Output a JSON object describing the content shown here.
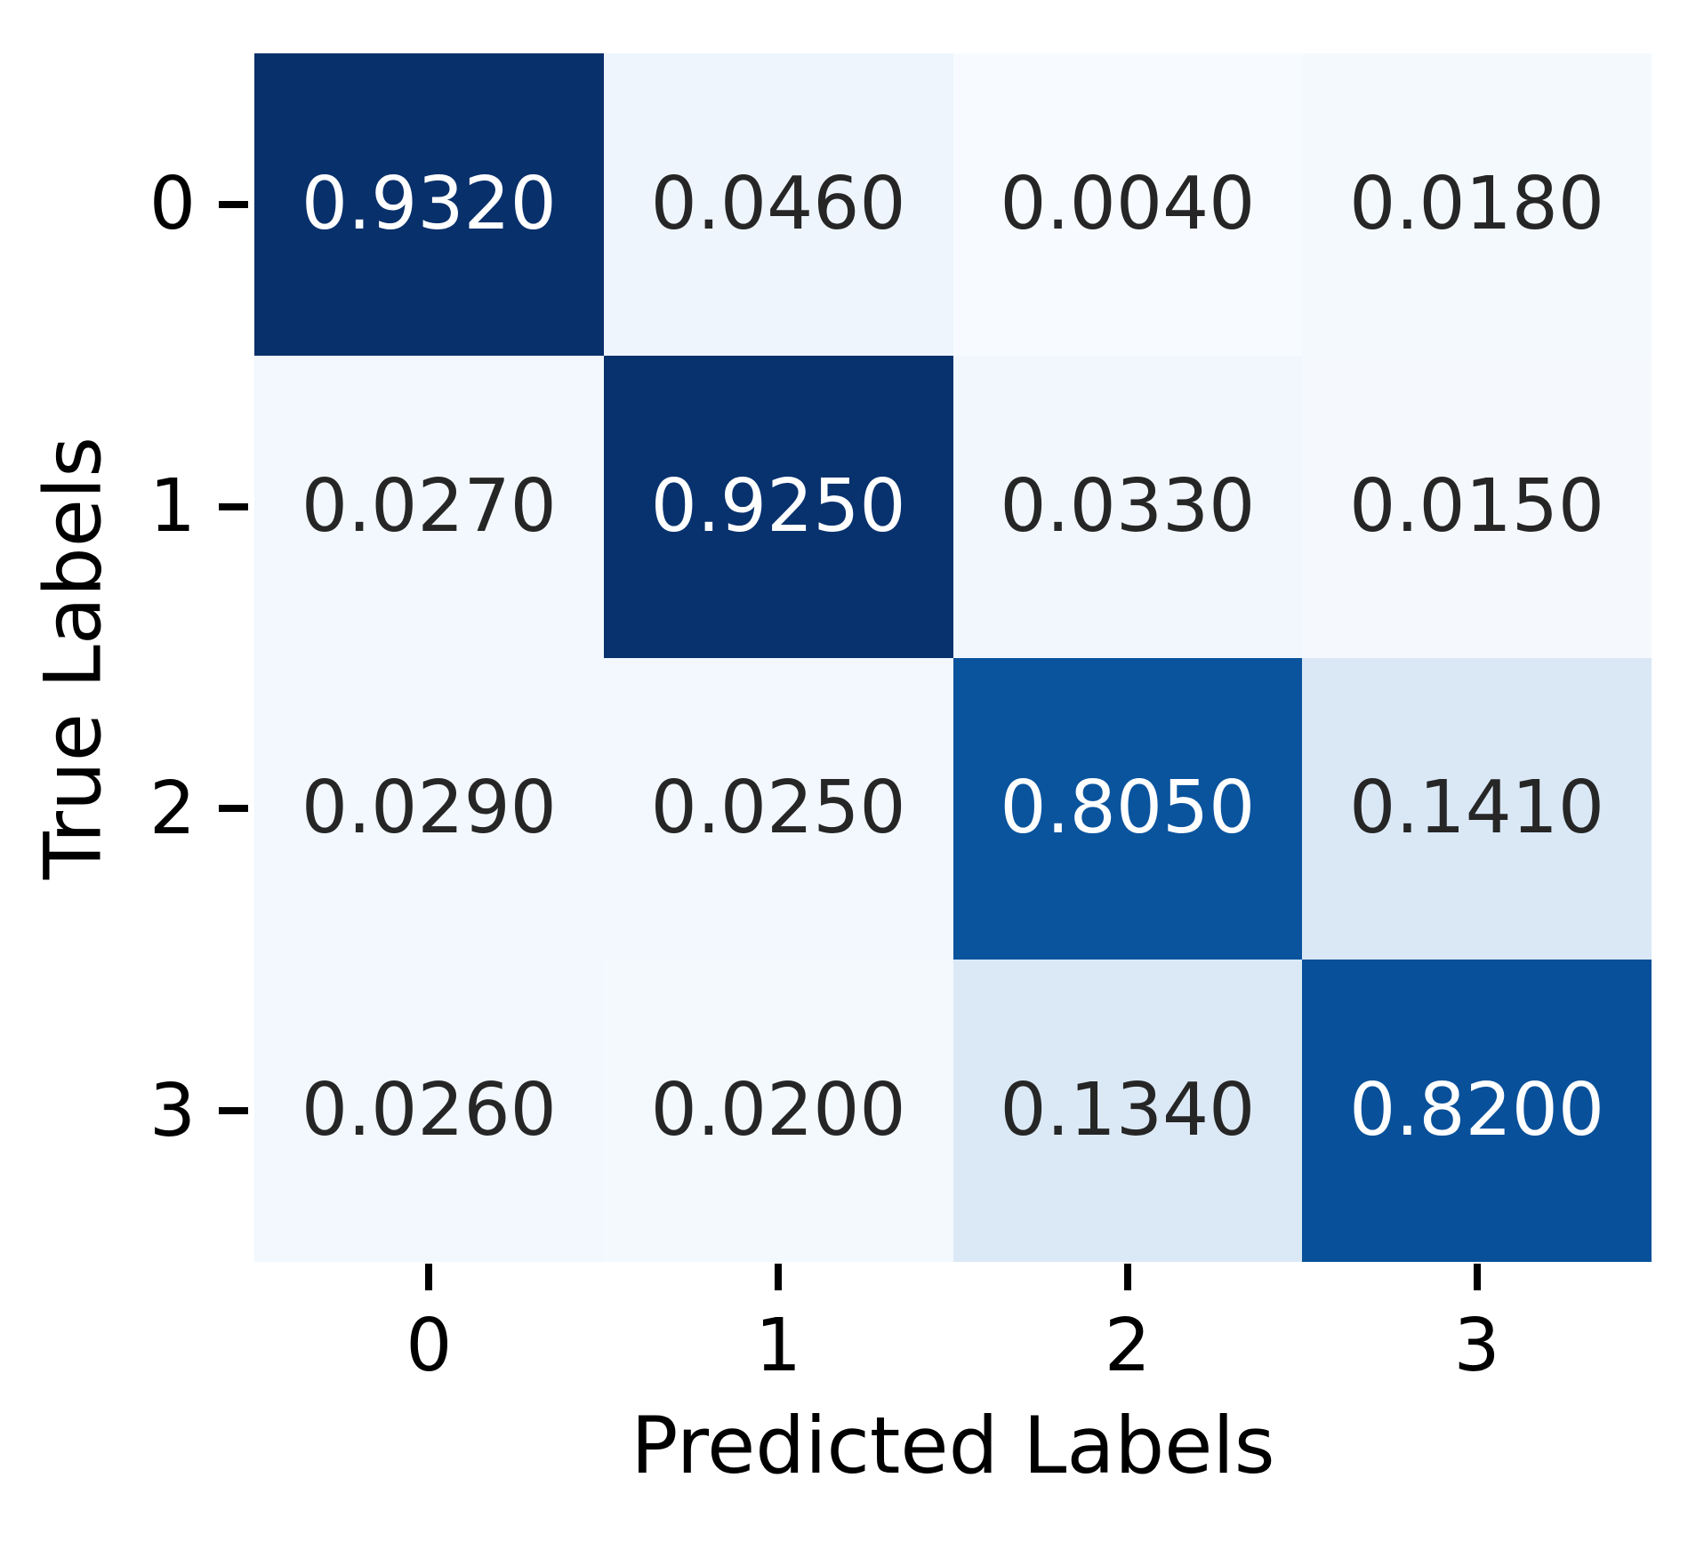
{
  "chart_data": {
    "type": "heatmap",
    "title": "",
    "xlabel": "Predicted Labels",
    "ylabel": "True Labels",
    "x_tick_labels": [
      "0",
      "1",
      "2",
      "3"
    ],
    "y_tick_labels": [
      "0",
      "1",
      "2",
      "3"
    ],
    "matrix": [
      [
        0.932,
        0.046,
        0.004,
        0.018
      ],
      [
        0.027,
        0.925,
        0.033,
        0.015
      ],
      [
        0.029,
        0.025,
        0.805,
        0.141
      ],
      [
        0.026,
        0.02,
        0.134,
        0.82
      ]
    ],
    "cell_text": [
      [
        "0.9320",
        "0.0460",
        "0.0040",
        "0.0180"
      ],
      [
        "0.0270",
        "0.9250",
        "0.0330",
        "0.0150"
      ],
      [
        "0.0290",
        "0.0250",
        "0.8050",
        "0.1410"
      ],
      [
        "0.0260",
        "0.0200",
        "0.1340",
        "0.8200"
      ]
    ],
    "colormap": "Blues",
    "vmin": 0.004,
    "vmax": 0.932,
    "grid": "off",
    "legend": "none",
    "colors": {
      "background": "#ffffff",
      "text_dark": "#262626",
      "text_light": "#ffffff",
      "tick_mark": "#000000",
      "axis_text": "#000000",
      "colormap_stops": [
        {
          "pos": 0.0,
          "rgb": [
            247,
            251,
            255
          ]
        },
        {
          "pos": 0.125,
          "rgb": [
            222,
            235,
            247
          ]
        },
        {
          "pos": 0.25,
          "rgb": [
            198,
            219,
            239
          ]
        },
        {
          "pos": 0.375,
          "rgb": [
            158,
            202,
            225
          ]
        },
        {
          "pos": 0.5,
          "rgb": [
            107,
            174,
            214
          ]
        },
        {
          "pos": 0.625,
          "rgb": [
            66,
            146,
            198
          ]
        },
        {
          "pos": 0.75,
          "rgb": [
            33,
            113,
            181
          ]
        },
        {
          "pos": 0.875,
          "rgb": [
            8,
            81,
            156
          ]
        },
        {
          "pos": 1.0,
          "rgb": [
            8,
            48,
            107
          ]
        }
      ]
    }
  }
}
